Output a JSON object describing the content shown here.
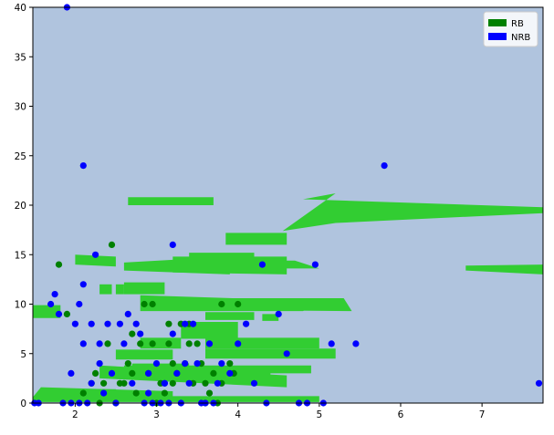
{
  "chart_data": {
    "type": "scatter",
    "title": "",
    "xlabel": "",
    "ylabel": "",
    "xlim": [
      1.48,
      7.75
    ],
    "ylim": [
      0,
      40
    ],
    "x_ticks": [
      2,
      3,
      4,
      5,
      6,
      7
    ],
    "y_ticks": [
      0,
      5,
      10,
      15,
      20,
      25,
      30,
      35,
      40
    ],
    "grid": false,
    "legend_position": "top-right",
    "background_color": "#b0c4de",
    "decision_region_color": "#32cd32",
    "legend": [
      {
        "label": "RB",
        "color": "#008000"
      },
      {
        "label": "NRB",
        "color": "#0000ff"
      }
    ],
    "decision_regions": [
      [
        [
          1.48,
          8.6
        ],
        [
          1.82,
          8.6
        ],
        [
          1.82,
          9.9
        ],
        [
          1.48,
          9.9
        ]
      ],
      [
        [
          1.48,
          0.6
        ],
        [
          1.58,
          1.6
        ],
        [
          3.2,
          1.2
        ],
        [
          3.2,
          0.2
        ],
        [
          1.48,
          0.2
        ]
      ],
      [
        [
          1.7,
          0.5
        ],
        [
          2.5,
          0.5
        ],
        [
          2.5,
          1.4
        ],
        [
          1.7,
          1.4
        ]
      ],
      [
        [
          1.5,
          0.1
        ],
        [
          5.0,
          0.1
        ],
        [
          5.0,
          0.7
        ],
        [
          1.5,
          0.7
        ]
      ],
      [
        [
          2.3,
          2.5
        ],
        [
          4.6,
          1.6
        ],
        [
          4.6,
          2.8
        ],
        [
          2.3,
          3.8
        ]
      ],
      [
        [
          2.6,
          3.0
        ],
        [
          4.9,
          3.0
        ],
        [
          4.9,
          3.8
        ],
        [
          2.6,
          3.8
        ]
      ],
      [
        [
          3.1,
          2.4
        ],
        [
          4.4,
          2.4
        ],
        [
          4.4,
          3.2
        ],
        [
          3.1,
          3.2
        ]
      ],
      [
        [
          3.6,
          4.5
        ],
        [
          5.2,
          4.5
        ],
        [
          5.2,
          5.5
        ],
        [
          3.6,
          5.5
        ]
      ],
      [
        [
          3.6,
          5.5
        ],
        [
          5.0,
          5.5
        ],
        [
          5.0,
          6.6
        ],
        [
          3.6,
          6.6
        ]
      ],
      [
        [
          2.8,
          5.5
        ],
        [
          3.3,
          5.5
        ],
        [
          3.3,
          6.6
        ],
        [
          2.8,
          6.6
        ]
      ],
      [
        [
          3.3,
          6.5
        ],
        [
          4.0,
          6.5
        ],
        [
          4.0,
          8.2
        ],
        [
          3.3,
          8.2
        ]
      ],
      [
        [
          2.5,
          4.4
        ],
        [
          3.2,
          4.4
        ],
        [
          3.2,
          5.4
        ],
        [
          2.5,
          5.4
        ]
      ],
      [
        [
          2.7,
          3.1
        ],
        [
          3.4,
          3.1
        ],
        [
          3.4,
          4.0
        ],
        [
          2.7,
          4.0
        ]
      ],
      [
        [
          2.8,
          9.3
        ],
        [
          4.8,
          9.3
        ],
        [
          5.0,
          10.3
        ],
        [
          2.8,
          10.9
        ]
      ],
      [
        [
          3.9,
          9.4
        ],
        [
          5.4,
          9.3
        ],
        [
          5.3,
          10.6
        ],
        [
          3.9,
          10.6
        ]
      ],
      [
        [
          3.6,
          8.4
        ],
        [
          4.2,
          8.4
        ],
        [
          4.2,
          9.2
        ],
        [
          3.6,
          9.2
        ]
      ],
      [
        [
          4.3,
          8.3
        ],
        [
          4.5,
          8.3
        ],
        [
          4.5,
          9.0
        ],
        [
          4.3,
          9.0
        ]
      ],
      [
        [
          2.6,
          11.0
        ],
        [
          3.1,
          11.0
        ],
        [
          3.1,
          12.2
        ],
        [
          2.6,
          12.2
        ]
      ],
      [
        [
          2.3,
          11.0
        ],
        [
          2.45,
          11.0
        ],
        [
          2.45,
          12.0
        ],
        [
          2.3,
          12.0
        ]
      ],
      [
        [
          2.5,
          11.0
        ],
        [
          2.6,
          11.0
        ],
        [
          2.6,
          12.0
        ],
        [
          2.5,
          12.0
        ]
      ],
      [
        [
          2.6,
          13.4
        ],
        [
          3.9,
          13.0
        ],
        [
          3.9,
          14.8
        ],
        [
          2.6,
          14.2
        ]
      ],
      [
        [
          3.2,
          13.2
        ],
        [
          4.6,
          13.0
        ],
        [
          4.6,
          14.8
        ],
        [
          3.2,
          14.8
        ]
      ],
      [
        [
          3.6,
          13.9
        ],
        [
          4.0,
          13.9
        ],
        [
          4.0,
          14.9
        ],
        [
          3.6,
          14.9
        ]
      ],
      [
        [
          4.4,
          13.6
        ],
        [
          5.0,
          13.6
        ],
        [
          4.7,
          14.4
        ],
        [
          4.4,
          14.4
        ]
      ],
      [
        [
          2.0,
          14.0
        ],
        [
          2.5,
          13.8
        ],
        [
          2.5,
          14.8
        ],
        [
          2.0,
          15.0
        ]
      ],
      [
        [
          3.4,
          14.6
        ],
        [
          4.2,
          14.6
        ],
        [
          4.2,
          15.2
        ],
        [
          3.4,
          15.2
        ]
      ],
      [
        [
          3.85,
          16.0
        ],
        [
          4.6,
          16.0
        ],
        [
          4.6,
          17.2
        ],
        [
          3.85,
          17.2
        ]
      ],
      [
        [
          4.55,
          17.4
        ],
        [
          5.2,
          18.2
        ],
        [
          7.75,
          19.2
        ],
        [
          7.75,
          19.8
        ],
        [
          4.8,
          20.6
        ],
        [
          5.2,
          21.2
        ]
      ],
      [
        [
          2.65,
          20.0
        ],
        [
          3.7,
          20.0
        ],
        [
          3.7,
          20.8
        ],
        [
          2.65,
          20.8
        ]
      ],
      [
        [
          6.8,
          13.4
        ],
        [
          7.75,
          13.0
        ],
        [
          7.75,
          14.0
        ],
        [
          6.8,
          13.9
        ]
      ]
    ],
    "series": [
      {
        "name": "RB",
        "color": "#008000",
        "points": [
          [
            1.8,
            14
          ],
          [
            1.9,
            9
          ],
          [
            2.1,
            1
          ],
          [
            2.2,
            2
          ],
          [
            2.25,
            3
          ],
          [
            2.3,
            0
          ],
          [
            2.35,
            2
          ],
          [
            2.4,
            6
          ],
          [
            2.45,
            16
          ],
          [
            2.5,
            0
          ],
          [
            2.55,
            2
          ],
          [
            2.6,
            2
          ],
          [
            2.65,
            4
          ],
          [
            2.7,
            7
          ],
          [
            2.7,
            3
          ],
          [
            2.75,
            1
          ],
          [
            2.8,
            6
          ],
          [
            2.85,
            10
          ],
          [
            2.9,
            3
          ],
          [
            2.95,
            6
          ],
          [
            3.0,
            0
          ],
          [
            3.05,
            2
          ],
          [
            3.1,
            1
          ],
          [
            3.15,
            8
          ],
          [
            3.2,
            4
          ],
          [
            3.2,
            2
          ],
          [
            3.25,
            3
          ],
          [
            3.3,
            8
          ],
          [
            3.35,
            4
          ],
          [
            3.4,
            6
          ],
          [
            3.4,
            8
          ],
          [
            3.45,
            2
          ],
          [
            3.5,
            6
          ],
          [
            3.55,
            4
          ],
          [
            3.6,
            2
          ],
          [
            3.65,
            1
          ],
          [
            3.7,
            3
          ],
          [
            3.75,
            0
          ],
          [
            3.8,
            2
          ],
          [
            3.8,
            10
          ],
          [
            3.9,
            4
          ],
          [
            3.95,
            3
          ],
          [
            4.0,
            10
          ],
          [
            2.95,
            10
          ],
          [
            3.15,
            6
          ],
          [
            3.6,
            0
          ]
        ]
      },
      {
        "name": "NRB",
        "color": "#0000ff",
        "points": [
          [
            1.5,
            0
          ],
          [
            1.55,
            0
          ],
          [
            1.7,
            10
          ],
          [
            1.75,
            11
          ],
          [
            1.8,
            9
          ],
          [
            1.85,
            0
          ],
          [
            1.9,
            40
          ],
          [
            1.95,
            0
          ],
          [
            2.0,
            8
          ],
          [
            2.05,
            0
          ],
          [
            2.1,
            12
          ],
          [
            2.1,
            6
          ],
          [
            2.15,
            0
          ],
          [
            2.2,
            2
          ],
          [
            2.25,
            15
          ],
          [
            2.3,
            4
          ],
          [
            2.35,
            1
          ],
          [
            2.4,
            8
          ],
          [
            2.45,
            3
          ],
          [
            2.5,
            0
          ],
          [
            2.55,
            8
          ],
          [
            2.6,
            6
          ],
          [
            2.65,
            9
          ],
          [
            2.7,
            2
          ],
          [
            2.75,
            8
          ],
          [
            2.8,
            7
          ],
          [
            2.85,
            0
          ],
          [
            2.9,
            3
          ],
          [
            2.95,
            0
          ],
          [
            3.0,
            4
          ],
          [
            3.05,
            0
          ],
          [
            3.1,
            2
          ],
          [
            3.15,
            0
          ],
          [
            3.2,
            7
          ],
          [
            3.25,
            3
          ],
          [
            3.3,
            0
          ],
          [
            3.35,
            4
          ],
          [
            3.4,
            2
          ],
          [
            3.45,
            8
          ],
          [
            3.5,
            4
          ],
          [
            3.55,
            0
          ],
          [
            3.6,
            0
          ],
          [
            3.65,
            6
          ],
          [
            3.7,
            0
          ],
          [
            3.75,
            2
          ],
          [
            3.8,
            4
          ],
          [
            3.9,
            3
          ],
          [
            4.0,
            6
          ],
          [
            4.1,
            8
          ],
          [
            4.2,
            2
          ],
          [
            4.3,
            14
          ],
          [
            4.35,
            0
          ],
          [
            4.5,
            9
          ],
          [
            4.6,
            5
          ],
          [
            4.75,
            0
          ],
          [
            4.85,
            0
          ],
          [
            4.95,
            14
          ],
          [
            5.05,
            0
          ],
          [
            5.15,
            6
          ],
          [
            5.45,
            6
          ],
          [
            5.8,
            24
          ],
          [
            7.7,
            2
          ],
          [
            2.1,
            24
          ],
          [
            1.95,
            3
          ],
          [
            2.05,
            10
          ],
          [
            2.2,
            8
          ],
          [
            2.3,
            6
          ],
          [
            3.2,
            16
          ],
          [
            3.1,
            2
          ],
          [
            3.35,
            8
          ],
          [
            2.9,
            1
          ]
        ]
      }
    ]
  }
}
